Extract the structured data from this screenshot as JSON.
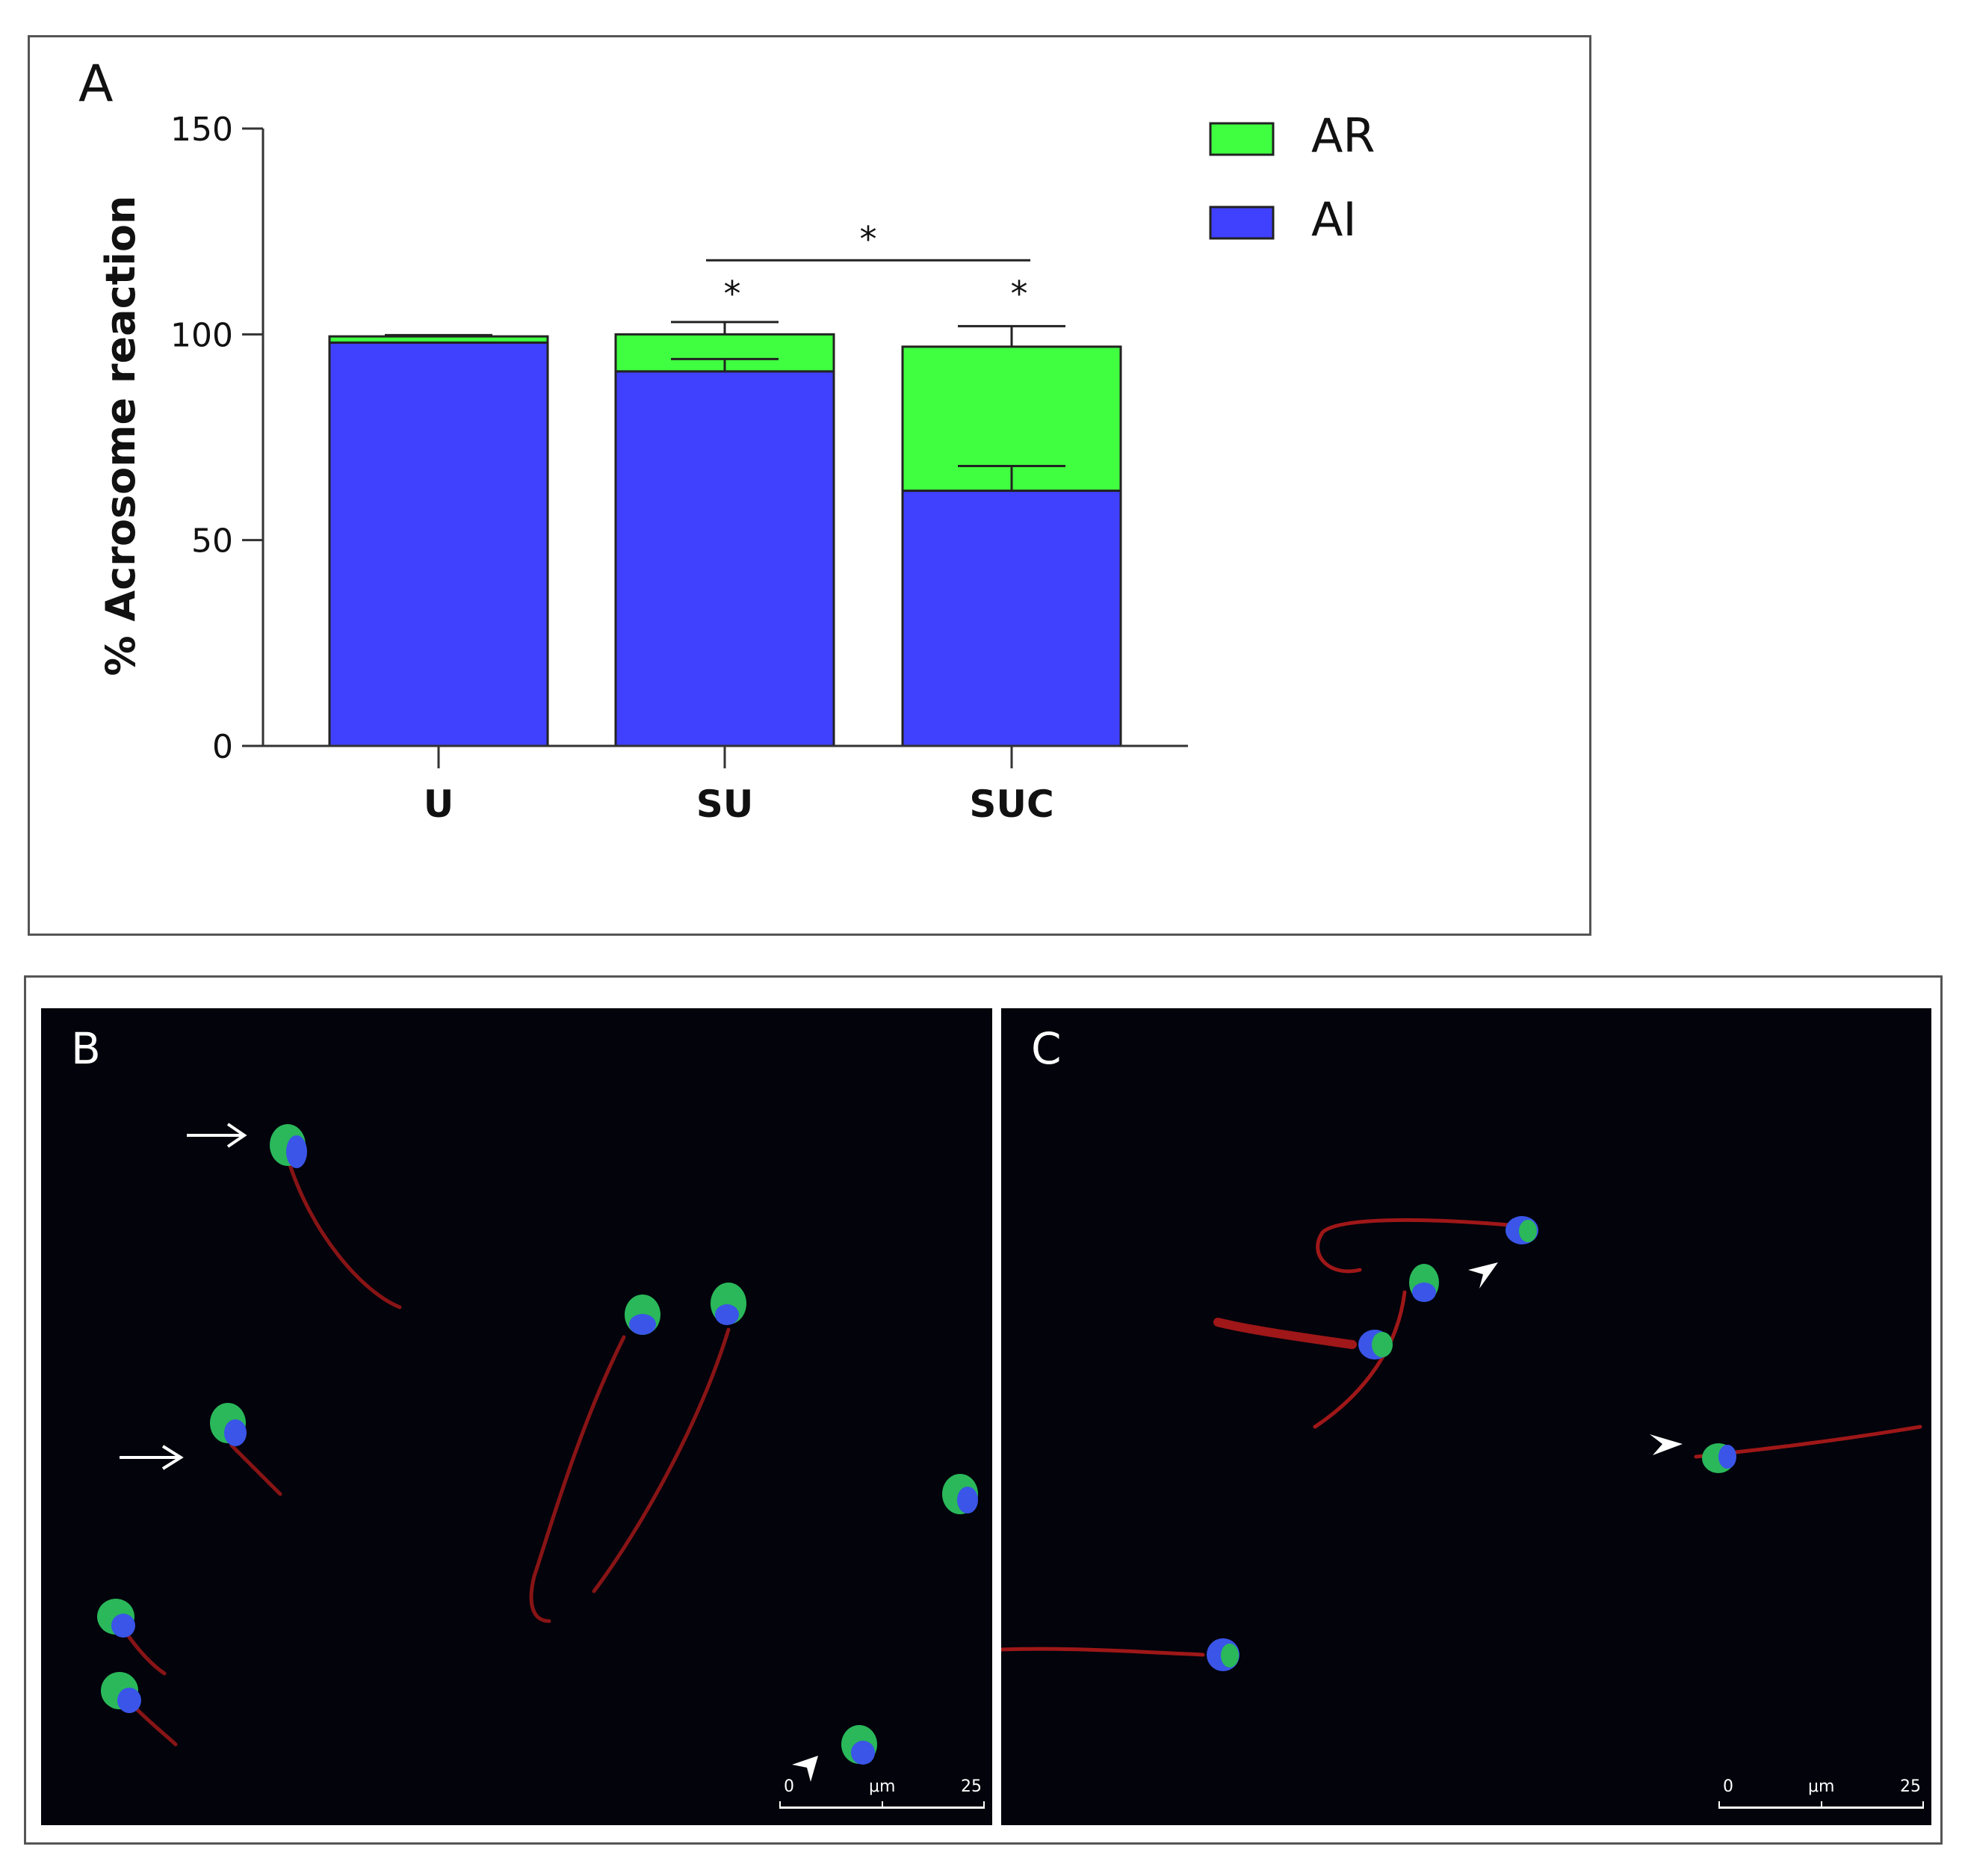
{
  "chart_data": {
    "type": "bar",
    "stacked": true,
    "panel_label": "A",
    "title": "",
    "xlabel": "",
    "ylabel": "% Acrosome reaction",
    "ylim": [
      0,
      150
    ],
    "yticks": [
      0,
      50,
      100,
      150
    ],
    "categories": [
      "U",
      "SU",
      "SUC"
    ],
    "series": [
      {
        "name": "AI",
        "color": "#4040ff",
        "values": [
          98,
          91,
          62
        ],
        "error": [
          0,
          3,
          6
        ]
      },
      {
        "name": "AR",
        "color": "#40ff40",
        "values": [
          1.5,
          9,
          35
        ],
        "error": [
          0.3,
          3,
          5
        ]
      }
    ],
    "legend_position": "top-right",
    "annotations": [
      {
        "text": "*",
        "target": "SU"
      },
      {
        "text": "*",
        "target": "SUC"
      },
      {
        "text": "*",
        "bracket": [
          "SU",
          "SUC"
        ]
      }
    ]
  },
  "micrographs": [
    {
      "panel_label": "B",
      "scale": {
        "start": "0",
        "unit": "μm",
        "end": "25"
      }
    },
    {
      "panel_label": "C",
      "scale": {
        "start": "0",
        "unit": "μm",
        "end": "25"
      }
    }
  ]
}
